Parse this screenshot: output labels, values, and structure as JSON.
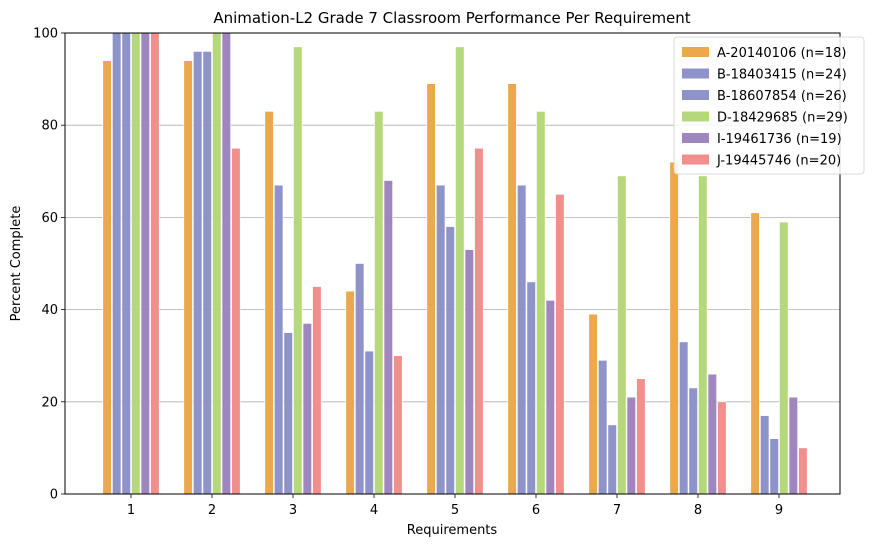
{
  "chart_data": {
    "type": "bar",
    "title": "Animation-L2 Grade 7 Classroom Performance Per Requirement",
    "xlabel": "Requirements",
    "ylabel": "Percent Complete",
    "ylim": [
      0,
      100
    ],
    "yticks": [
      0,
      20,
      40,
      60,
      80,
      100
    ],
    "grid": "horizontal",
    "legend_position": "top-right",
    "categories": [
      "1",
      "2",
      "3",
      "4",
      "5",
      "6",
      "7",
      "8",
      "9"
    ],
    "series": [
      {
        "name": "A-20140106 (n=18)",
        "color": "#eba84d",
        "values": [
          94,
          94,
          83,
          44,
          89,
          89,
          39,
          72,
          61
        ]
      },
      {
        "name": "B-18403415 (n=24)",
        "color": "#8e93c9",
        "values": [
          100,
          96,
          67,
          50,
          67,
          67,
          29,
          33,
          17
        ]
      },
      {
        "name": "B-18607854 (n=26)",
        "color": "#8e93c9",
        "values": [
          100,
          96,
          35,
          31,
          58,
          46,
          15,
          23,
          12
        ]
      },
      {
        "name": "D-18429685 (n=29)",
        "color": "#b5d87a",
        "values": [
          100,
          100,
          97,
          83,
          97,
          83,
          69,
          69,
          59
        ]
      },
      {
        "name": "I-19461736 (n=19)",
        "color": "#a086bf",
        "values": [
          100,
          100,
          37,
          68,
          53,
          42,
          21,
          26,
          21
        ]
      },
      {
        "name": "J-19445746 (n=20)",
        "color": "#f08f8c",
        "values": [
          100,
          75,
          45,
          30,
          75,
          65,
          25,
          20,
          10
        ]
      }
    ]
  }
}
